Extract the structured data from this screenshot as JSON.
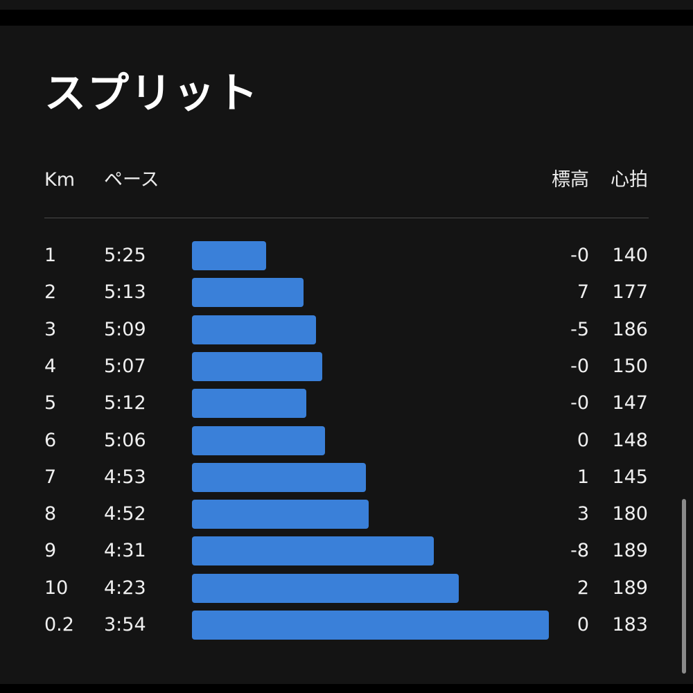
{
  "title": "スプリット",
  "columns": {
    "km": "Km",
    "pace": "ペース",
    "elevation": "標高",
    "heart_rate": "心拍"
  },
  "colors": {
    "background": "#141414",
    "bar": "#3a80d9",
    "text": "#f0f0f0"
  },
  "splits": [
    {
      "km": "1",
      "pace": "5:25",
      "pace_seconds": 325,
      "elevation": "-0",
      "heart_rate": "140"
    },
    {
      "km": "2",
      "pace": "5:13",
      "pace_seconds": 313,
      "elevation": "7",
      "heart_rate": "177"
    },
    {
      "km": "3",
      "pace": "5:09",
      "pace_seconds": 309,
      "elevation": "-5",
      "heart_rate": "186"
    },
    {
      "km": "4",
      "pace": "5:07",
      "pace_seconds": 307,
      "elevation": "-0",
      "heart_rate": "150"
    },
    {
      "km": "5",
      "pace": "5:12",
      "pace_seconds": 312,
      "elevation": "-0",
      "heart_rate": "147"
    },
    {
      "km": "6",
      "pace": "5:06",
      "pace_seconds": 306,
      "elevation": "0",
      "heart_rate": "148"
    },
    {
      "km": "7",
      "pace": "4:53",
      "pace_seconds": 293,
      "elevation": "1",
      "heart_rate": "145"
    },
    {
      "km": "8",
      "pace": "4:52",
      "pace_seconds": 292,
      "elevation": "3",
      "heart_rate": "180"
    },
    {
      "km": "9",
      "pace": "4:31",
      "pace_seconds": 271,
      "elevation": "-8",
      "heart_rate": "189"
    },
    {
      "km": "10",
      "pace": "4:23",
      "pace_seconds": 263,
      "elevation": "2",
      "heart_rate": "189"
    },
    {
      "km": "0.2",
      "pace": "3:54",
      "pace_seconds": 234,
      "elevation": "0",
      "heart_rate": "183"
    }
  ]
}
